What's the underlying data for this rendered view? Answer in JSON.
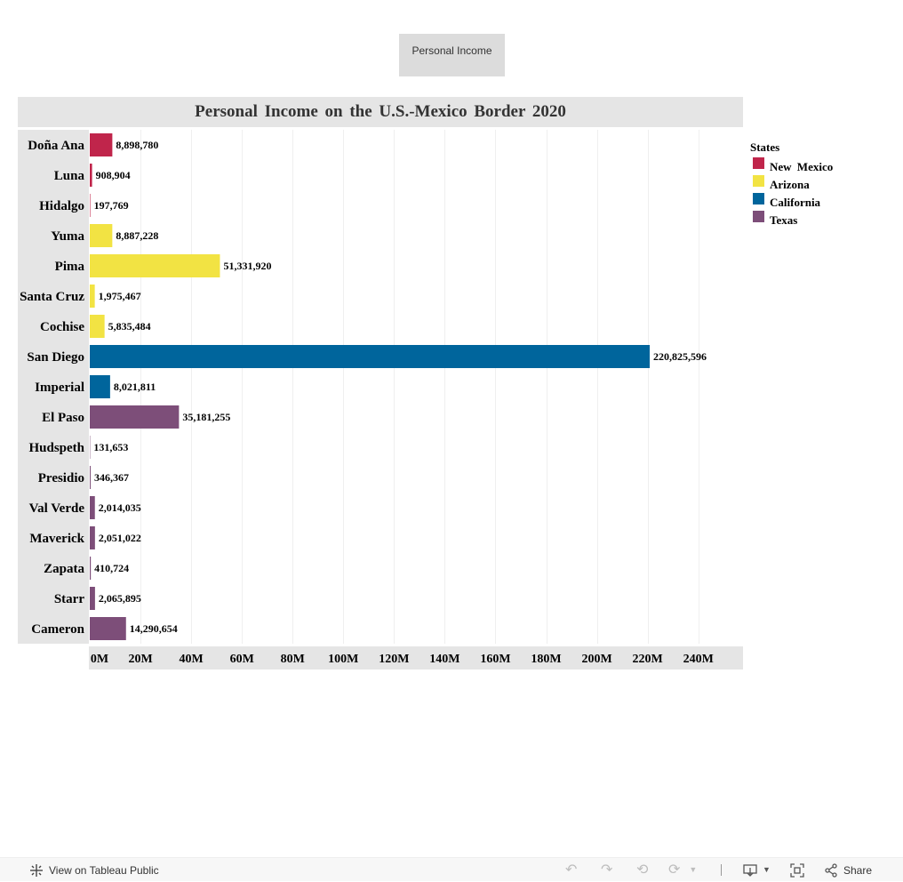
{
  "tab": {
    "label": "Personal Income"
  },
  "chart_data": {
    "type": "bar",
    "orientation": "horizontal",
    "title": "Personal Income on the U.S.-Mexico Border 2020",
    "categories": [
      "Doña Ana",
      "Luna",
      "Hidalgo",
      "Yuma",
      "Pima",
      "Santa Cruz",
      "Cochise",
      "San Diego",
      "Imperial",
      "El Paso",
      "Hudspeth",
      "Presidio",
      "Val Verde",
      "Maverick",
      "Zapata",
      "Starr",
      "Cameron"
    ],
    "values": [
      8898780,
      908904,
      197769,
      8887228,
      51331920,
      1975467,
      5835484,
      220825596,
      8021811,
      35181255,
      131653,
      346367,
      2014035,
      2051022,
      410724,
      2065895,
      14290654
    ],
    "value_labels": [
      "8,898,780",
      "908,904",
      "197,769",
      "8,887,228",
      "51,331,920",
      "1,975,467",
      "5,835,484",
      "220,825,596",
      "8,021,811",
      "35,181,255",
      "131,653",
      "346,367",
      "2,014,035",
      "2,051,022",
      "410,724",
      "2,065,895",
      "14,290,654"
    ],
    "groups": [
      "New Mexico",
      "New Mexico",
      "New Mexico",
      "Arizona",
      "Arizona",
      "Arizona",
      "Arizona",
      "California",
      "California",
      "Texas",
      "Texas",
      "Texas",
      "Texas",
      "Texas",
      "Texas",
      "Texas",
      "Texas"
    ],
    "xlim": [
      0,
      256000000
    ],
    "x_ticks": [
      0,
      20000000,
      40000000,
      60000000,
      80000000,
      100000000,
      120000000,
      140000000,
      160000000,
      180000000,
      200000000,
      220000000,
      240000000
    ],
    "x_tick_labels": [
      "0M",
      "20M",
      "40M",
      "60M",
      "80M",
      "100M",
      "120M",
      "140M",
      "160M",
      "180M",
      "200M",
      "220M",
      "240M"
    ],
    "grid": true,
    "legend": {
      "title": "States",
      "position": "right",
      "items": [
        {
          "label": "New Mexico",
          "color": "#c0254b"
        },
        {
          "label": "Arizona",
          "color": "#f2e343"
        },
        {
          "label": "California",
          "color": "#00659c"
        },
        {
          "label": "Texas",
          "color": "#7d4e79"
        }
      ]
    }
  },
  "toolbar": {
    "view_label": "View on Tableau Public",
    "share_label": "Share",
    "icons": [
      "tableau-icon",
      "undo-icon",
      "redo-icon",
      "revert-icon",
      "refresh-icon",
      "pause-icon",
      "download-icon",
      "fullscreen-icon",
      "share-icon"
    ]
  }
}
